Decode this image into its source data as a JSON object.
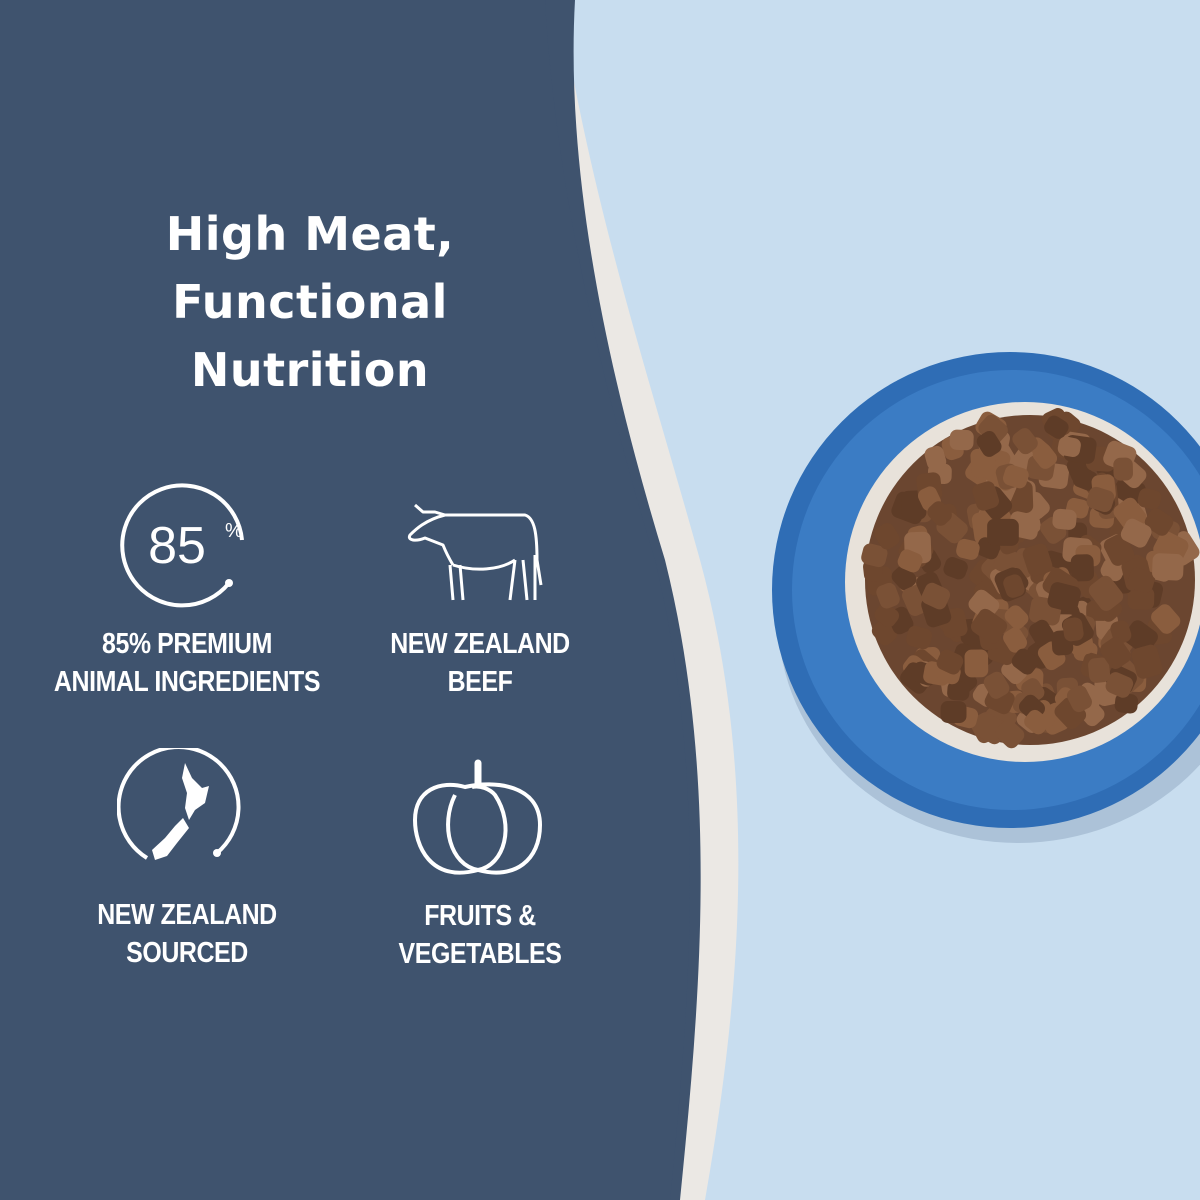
{
  "headline": {
    "line1": "High Meat,",
    "line2": "Functional",
    "line3": "Nutrition"
  },
  "features": [
    {
      "icon": "85-percent-circle-icon",
      "badge": "85",
      "badge_unit": "%",
      "line1": "85% PREMIUM",
      "line2": "ANIMAL INGREDIENTS"
    },
    {
      "icon": "cow-icon",
      "line1": "NEW ZEALAND",
      "line2": "BEEF"
    },
    {
      "icon": "new-zealand-map-icon",
      "line1": "NEW ZEALAND",
      "line2": "SOURCED"
    },
    {
      "icon": "pumpkin-icon",
      "line1": "FRUITS &",
      "line2": "VEGETABLES"
    }
  ],
  "colors": {
    "panel": "#3f536e",
    "background": "#c8ddef",
    "bowl": "#2f6db5",
    "kibble": "#7a5136"
  }
}
